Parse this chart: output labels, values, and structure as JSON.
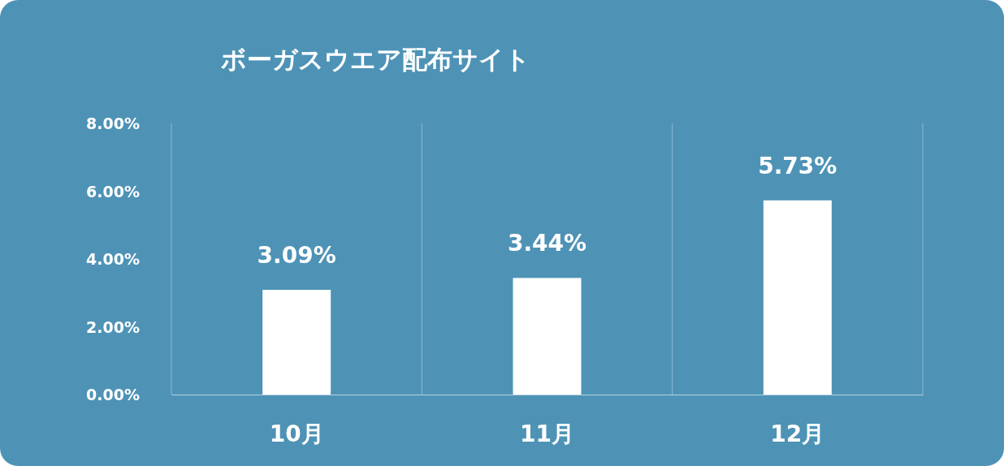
{
  "chart_data": {
    "type": "bar",
    "title": "ボーガスウエア配布サイト",
    "categories": [
      "10月",
      "11月",
      "12月"
    ],
    "values": [
      3.09,
      3.44,
      5.73
    ],
    "value_labels": [
      "3.09%",
      "3.44%",
      "5.73%"
    ],
    "color": "#ffffff",
    "ylim": [
      0,
      8
    ],
    "yticks": [
      {
        "value": 0,
        "label": "0.00%"
      },
      {
        "value": 2,
        "label": "2.00%"
      },
      {
        "value": 4,
        "label": "4.00%"
      },
      {
        "value": 6,
        "label": "6.00%"
      },
      {
        "value": 8,
        "label": "8.00%"
      }
    ],
    "grid": "x"
  }
}
